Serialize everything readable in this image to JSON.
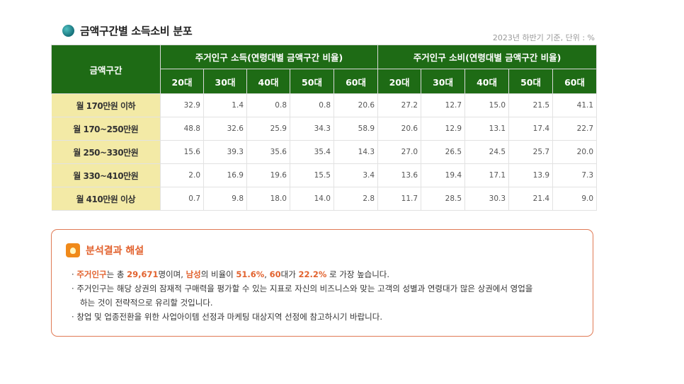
{
  "header": {
    "title": "금액구간별 소득소비 분포",
    "note": "2023년 하반기 기준, 단위 : %"
  },
  "table": {
    "range_header": "금액구간",
    "income_header": "주거인구 소득(연령대별 금액구간 비율)",
    "spend_header": "주거인구 소비(연령대별 금액구간 비율)",
    "ages": [
      "20대",
      "30대",
      "40대",
      "50대",
      "60대"
    ],
    "rows": [
      {
        "range": "월 170만원 이하",
        "income": [
          "32.9",
          "1.4",
          "0.8",
          "0.8",
          "20.6"
        ],
        "spend": [
          "27.2",
          "12.7",
          "15.0",
          "21.5",
          "41.1"
        ]
      },
      {
        "range": "월 170~250만원",
        "income": [
          "48.8",
          "32.6",
          "25.9",
          "34.3",
          "58.9"
        ],
        "spend": [
          "20.6",
          "12.9",
          "13.1",
          "17.4",
          "22.7"
        ]
      },
      {
        "range": "월 250~330만원",
        "income": [
          "15.6",
          "39.3",
          "35.6",
          "35.4",
          "14.3"
        ],
        "spend": [
          "27.0",
          "26.5",
          "24.5",
          "25.7",
          "20.0"
        ]
      },
      {
        "range": "월 330~410만원",
        "income": [
          "2.0",
          "16.9",
          "19.6",
          "15.5",
          "3.4"
        ],
        "spend": [
          "13.6",
          "19.4",
          "17.1",
          "13.9",
          "7.3"
        ]
      },
      {
        "range": "월 410만원 이상",
        "income": [
          "0.7",
          "9.8",
          "18.0",
          "14.0",
          "2.8"
        ],
        "spend": [
          "11.7",
          "28.5",
          "30.3",
          "21.4",
          "9.0"
        ]
      }
    ]
  },
  "analysis": {
    "title": "분석결과 해설",
    "line1": {
      "bullet": "·",
      "t1": "주거인구",
      "t2": "는 총 ",
      "t3": "29,671",
      "t4": "명이며, ",
      "t5": "남성",
      "t6": "의 비율이 ",
      "t7": "51.6%",
      "t8": ", ",
      "t9": "60",
      "t10": "대가 ",
      "t11": "22.2%",
      "t12": " 로 가장 높습니다."
    },
    "line2": {
      "bullet": "·",
      "text": "주거인구는 해당 상권의 잠재적 구매력을 평가할 수 있는 지표로 자신의 비즈니스와 맞는 고객의 성별과 연령대가 많은 상권에서 영업을"
    },
    "line2b": "하는 것이 전략적으로 유리할 것입니다.",
    "line3": {
      "bullet": "·",
      "text": "창업 및 업종전환을 위한 사업아이템 선정과 마케팅 대상지역 선정에 참고하시기 바랍니다."
    }
  },
  "colors": {
    "header_green": "#1e6b15",
    "range_yellow": "#f3eaa6",
    "accent_orange": "#e2622e",
    "bulb_orange": "#f08a1a"
  }
}
